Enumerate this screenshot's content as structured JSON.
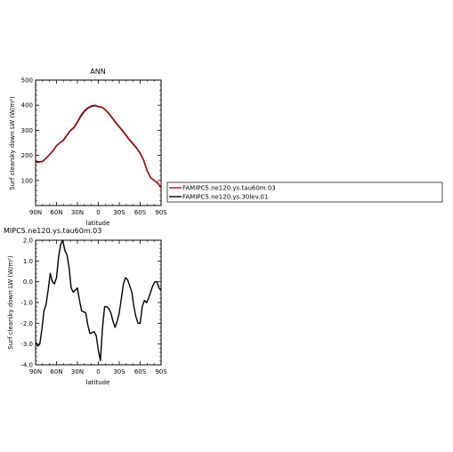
{
  "chart_data": [
    {
      "type": "line",
      "title": "ANN",
      "xlabel": "latitude",
      "ylabel": "Surf clearsky down LW (W/m²)",
      "x_ticks": [
        -90,
        -60,
        -30,
        0,
        30,
        60,
        90
      ],
      "x_tick_labels": [
        "90N",
        "60N",
        "30N",
        "0",
        "30S",
        "60S",
        "90S"
      ],
      "xlim": [
        -90,
        90
      ],
      "y_ticks": [
        100,
        200,
        300,
        400,
        500
      ],
      "y_tick_labels": [
        "100",
        "200",
        "300",
        "400",
        "500"
      ],
      "ylim": [
        0,
        500
      ],
      "series": [
        {
          "name": "FAMIPC5.ne120.ys.tau60m.03",
          "color": "#c00000",
          "x": [
            -90,
            -85,
            -80,
            -75,
            -70,
            -65,
            -60,
            -55,
            -50,
            -45,
            -40,
            -35,
            -30,
            -25,
            -20,
            -15,
            -10,
            -5,
            0,
            5,
            10,
            15,
            20,
            25,
            30,
            35,
            40,
            45,
            50,
            55,
            60,
            65,
            70,
            75,
            80,
            85,
            90
          ],
          "y": [
            172,
            173,
            175,
            188,
            202,
            218,
            238,
            250,
            262,
            282,
            300,
            312,
            335,
            360,
            378,
            390,
            397,
            400,
            395,
            392,
            382,
            368,
            350,
            332,
            315,
            298,
            280,
            262,
            246,
            230,
            210,
            182,
            140,
            112,
            100,
            92,
            70
          ]
        },
        {
          "name": "FAMIPC5.ne120.ys.30lev.01",
          "color": "#000000",
          "x": [
            -90,
            -85,
            -80,
            -75,
            -70,
            -65,
            -60,
            -55,
            -50,
            -45,
            -40,
            -35,
            -30,
            -25,
            -20,
            -15,
            -10,
            -5,
            0,
            5,
            10,
            15,
            20,
            25,
            30,
            35,
            40,
            45,
            50,
            55,
            60,
            65,
            70,
            75,
            80,
            85,
            90
          ],
          "y": [
            175,
            175,
            176,
            189,
            203,
            219,
            239,
            250,
            260,
            280,
            299,
            310,
            332,
            356,
            375,
            388,
            395,
            398,
            394,
            391,
            381,
            366,
            348,
            330,
            313,
            296,
            278,
            260,
            244,
            228,
            208,
            180,
            138,
            111,
            100,
            90,
            70
          ]
        }
      ]
    },
    {
      "type": "line",
      "title": "MIPC5.ne120.ys.tau60m.03",
      "xlabel": "latitude",
      "ylabel": "Surf clearsky down LW (W/m²)",
      "x_ticks": [
        -90,
        -60,
        -30,
        0,
        30,
        60,
        90
      ],
      "x_tick_labels": [
        "90N",
        "60N",
        "30N",
        "0",
        "30S",
        "60S",
        "90S"
      ],
      "xlim": [
        -90,
        90
      ],
      "y_ticks": [
        -4.0,
        -3.0,
        -2.0,
        -1.0,
        0.0,
        1.0,
        2.0
      ],
      "y_tick_labels": [
        "-4.0",
        "-3.0",
        "-2.0",
        "-1.0",
        "0.0",
        "1.0",
        "2.0"
      ],
      "ylim": [
        -4.0,
        2.0
      ],
      "series": [
        {
          "color": "#000000",
          "x": [
            -90,
            -87,
            -84,
            -81,
            -78,
            -75,
            -72,
            -69,
            -66,
            -63,
            -60,
            -57,
            -54,
            -51,
            -48,
            -45,
            -42,
            -39,
            -36,
            -33,
            -30,
            -27,
            -24,
            -21,
            -18,
            -15,
            -12,
            -9,
            -6,
            -3,
            0,
            3,
            6,
            9,
            12,
            15,
            18,
            21,
            24,
            27,
            30,
            33,
            36,
            39,
            42,
            45,
            48,
            51,
            54,
            57,
            60,
            63,
            66,
            69,
            72,
            75,
            78,
            81,
            84,
            87,
            90
          ],
          "y": [
            -2.9,
            -3.1,
            -3.0,
            -2.3,
            -1.4,
            -1.1,
            -0.4,
            0.4,
            0.0,
            -0.1,
            0.2,
            1.2,
            1.8,
            2.0,
            1.5,
            1.3,
            0.7,
            -0.3,
            -0.5,
            -0.4,
            -0.3,
            -0.9,
            -1.4,
            -1.45,
            -1.5,
            -2.1,
            -2.5,
            -2.45,
            -2.4,
            -2.6,
            -3.3,
            -3.8,
            -2.2,
            -1.2,
            -1.2,
            -1.3,
            -1.5,
            -1.9,
            -2.2,
            -1.9,
            -1.5,
            -0.8,
            -0.1,
            0.2,
            0.1,
            -0.2,
            -0.5,
            -1.2,
            -1.7,
            -2.0,
            -2.0,
            -1.2,
            -0.9,
            -1.0,
            -0.8,
            -0.5,
            -0.2,
            0.0,
            0.0,
            -0.3,
            -0.4
          ]
        }
      ]
    }
  ]
}
